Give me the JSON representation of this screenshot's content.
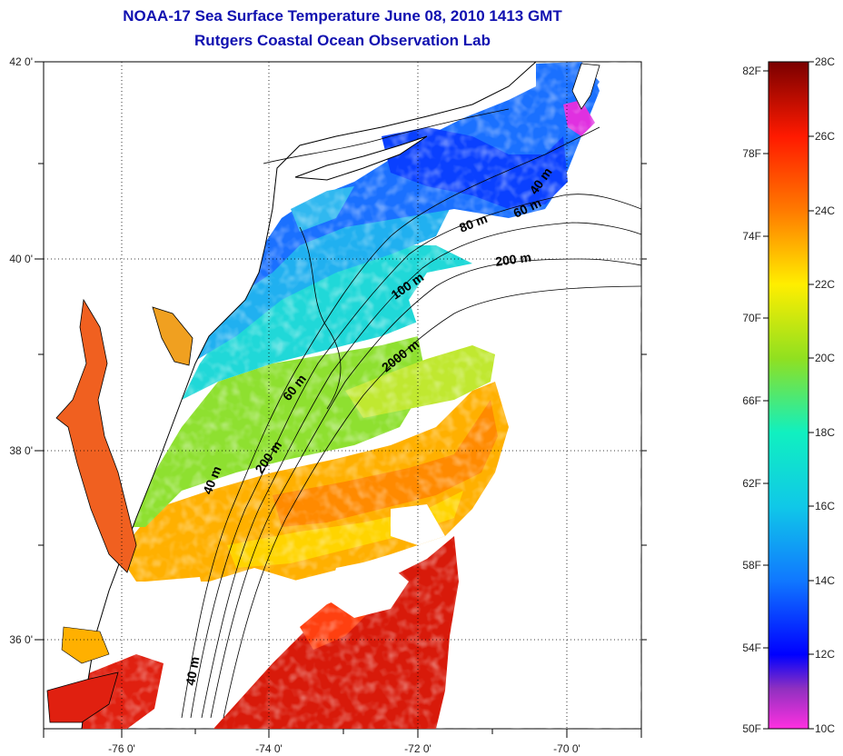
{
  "title_line1": "NOAA-17 Sea Surface Temperature June 08, 2010 1413 GMT",
  "title_line2": "Rutgers Coastal Ocean Observation Lab",
  "map": {
    "lon_range": [
      -77,
      -69
    ],
    "lat_range": [
      35,
      42
    ],
    "grid": "dotted",
    "lon_ticks": [
      "-76 0'",
      "-74 0'",
      "-72 0'",
      "-70 0'"
    ],
    "lat_ticks": [
      "42 0'",
      "40 0'",
      "38 0'",
      "36 0'"
    ]
  },
  "isobath_labels": [
    {
      "text": "40 m"
    },
    {
      "text": "60 m"
    },
    {
      "text": "80 m"
    },
    {
      "text": "200 m"
    },
    {
      "text": "100 m"
    },
    {
      "text": "2000 m"
    },
    {
      "text": "60 m"
    },
    {
      "text": "200 m"
    },
    {
      "text": "40 m"
    },
    {
      "text": "40 m"
    }
  ],
  "colorbar": {
    "min_c": 10,
    "max_c": 28,
    "fahrenheit_labels": [
      "82F",
      "78F",
      "74F",
      "70F",
      "66F",
      "62F",
      "58F",
      "54F",
      "50F"
    ],
    "celsius_labels": [
      "28C",
      "26C",
      "24C",
      "22C",
      "20C",
      "18C",
      "16C",
      "14C",
      "12C",
      "10C"
    ],
    "colors": {
      "c28": "#7a0000",
      "c26": "#ff1a00",
      "c24": "#ff7a00",
      "c22": "#ffee00",
      "c20": "#90e020",
      "c18": "#10f0c0",
      "c16": "#10c8e8",
      "c14": "#1078ff",
      "c12": "#0000ff",
      "c11": "#9030c0",
      "c10": "#ff30e0"
    }
  }
}
